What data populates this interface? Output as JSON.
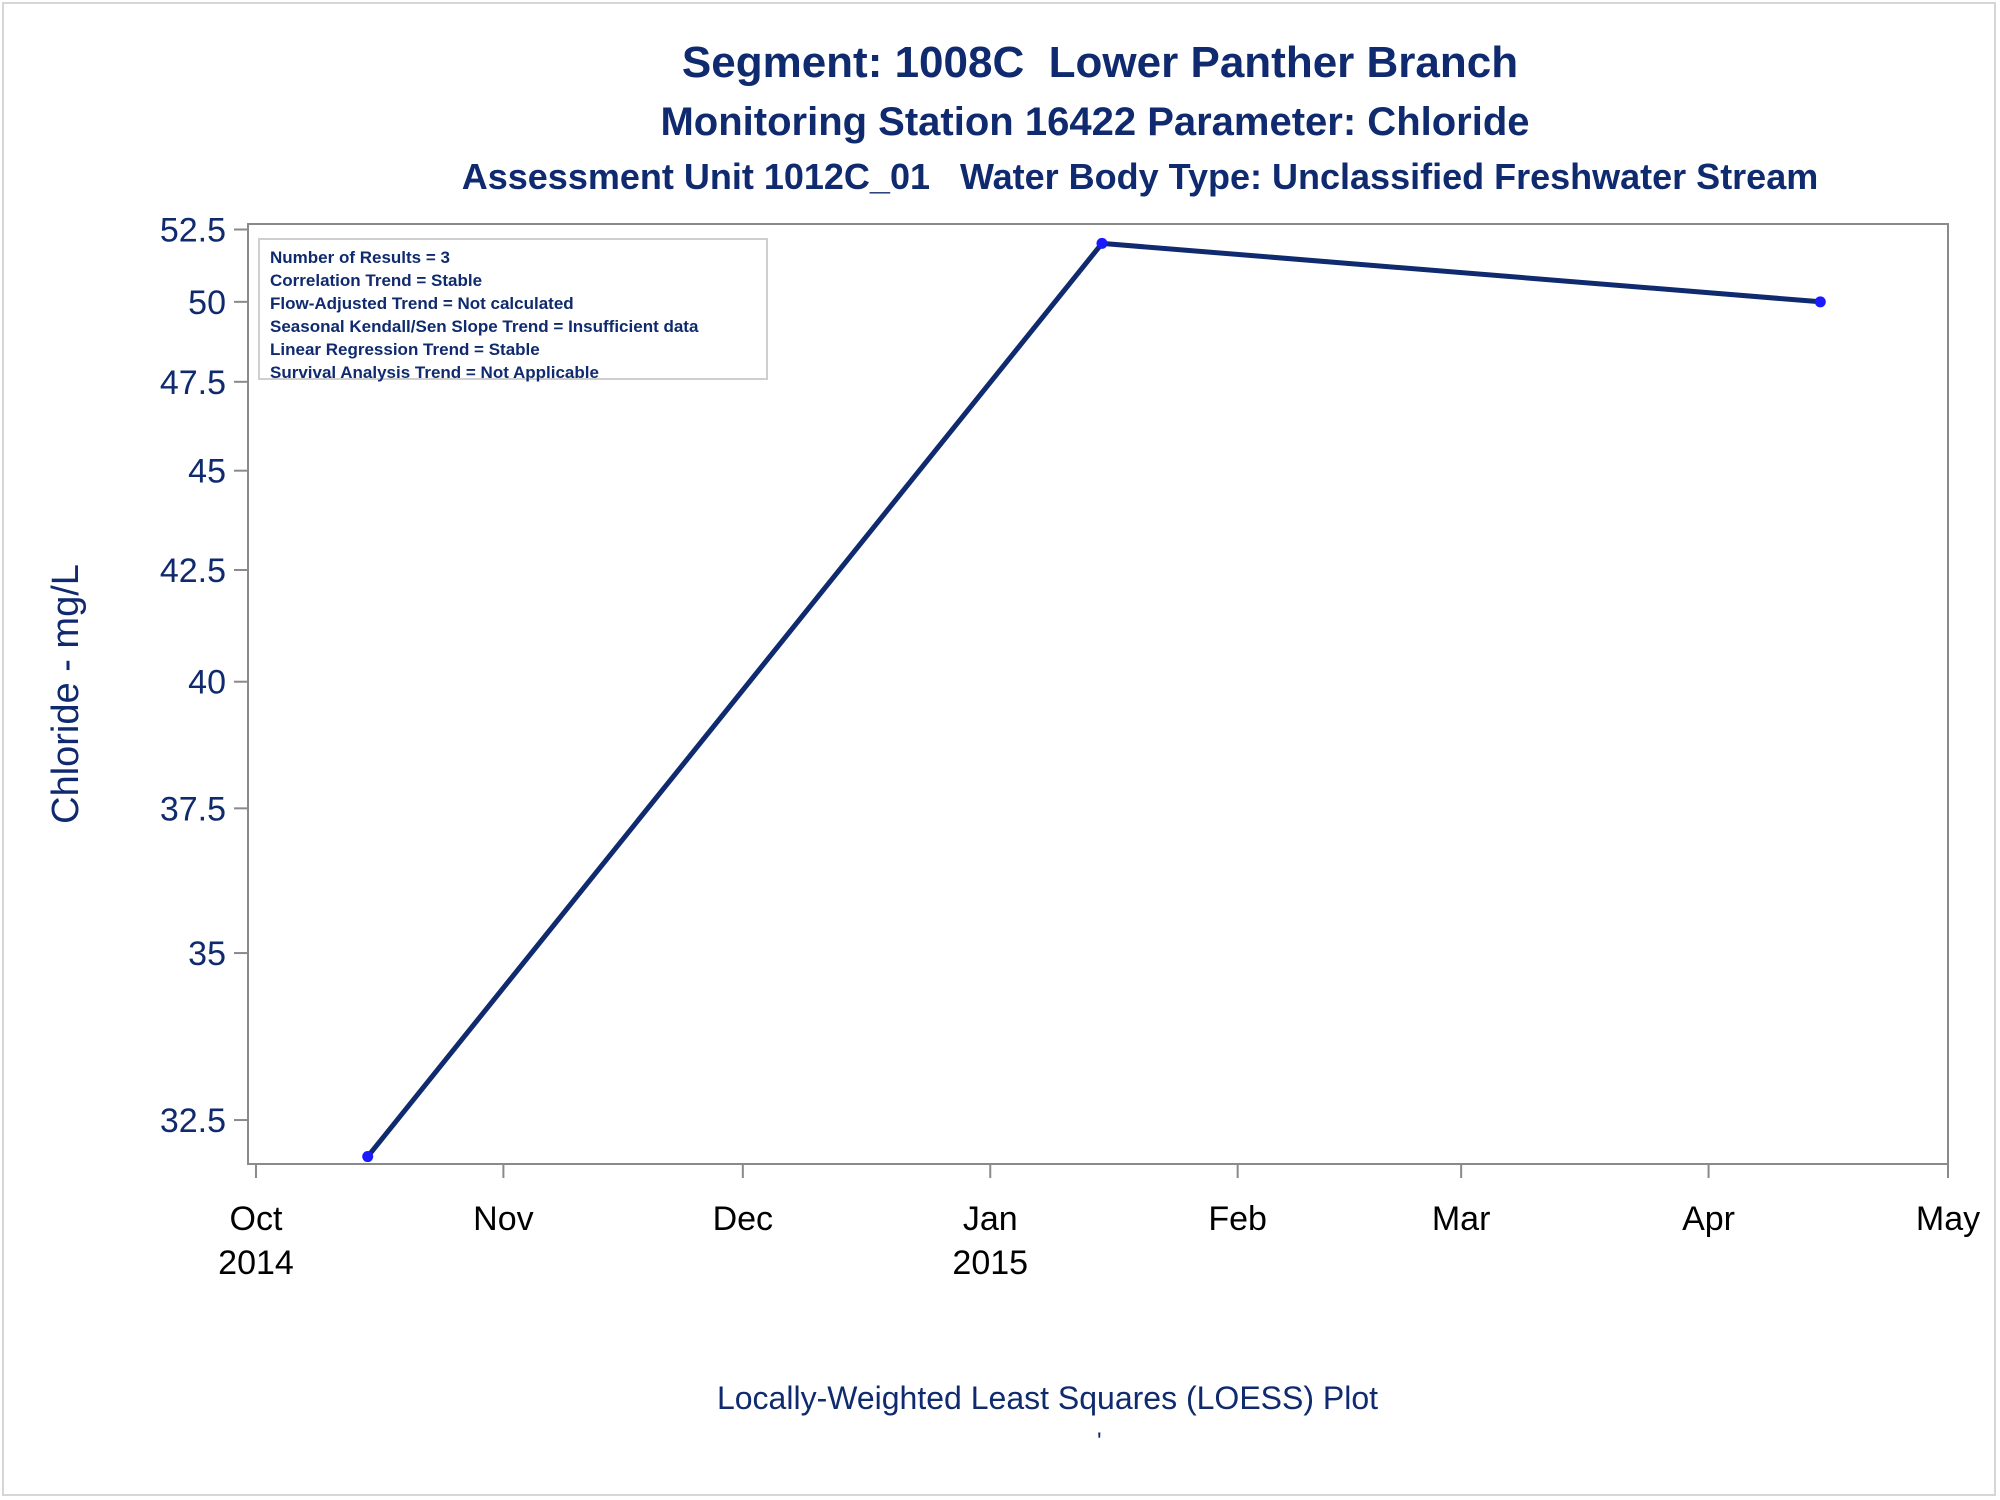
{
  "titles": {
    "line1": "Segment: 1008C  Lower Panther Branch",
    "line2": "Monitoring Station 16422 Parameter: Chloride",
    "line3": "Assessment Unit 1012C_01   Water Body Type: Unclassified Freshwater Stream"
  },
  "stats_box": {
    "line1": "Number of Results = 3",
    "line2": "Correlation Trend = Stable",
    "line3": "Flow-Adjusted Trend = Not calculated",
    "line4": "Seasonal Kendall/Sen Slope Trend = Insufficient data",
    "line5": "Linear Regression Trend = Stable",
    "line6": "Survival Analysis Trend = Not Applicable"
  },
  "footnote": "Locally-Weighted Least Squares (LOESS) Plot",
  "footnote_mark": "'",
  "colors": {
    "text": "#0f2a6e",
    "line": "#0f2a6e",
    "marker": "#1a1aff",
    "axis": "#8a8a8a"
  },
  "chart_data": {
    "type": "line",
    "title": "Segment: 1008C  Lower Panther Branch",
    "xlabel": "",
    "ylabel": "Chloride - mg/L",
    "ylim": [
      31.9,
      52.7
    ],
    "xlim": [
      "2014-09-30",
      "2015-05-01"
    ],
    "y_scale": "reciprocal",
    "grid": false,
    "x_ticks": [
      {
        "date": "2014-10-01",
        "label": "Oct",
        "sublabel": "2014"
      },
      {
        "date": "2014-11-01",
        "label": "Nov",
        "sublabel": ""
      },
      {
        "date": "2014-12-01",
        "label": "Dec",
        "sublabel": ""
      },
      {
        "date": "2015-01-01",
        "label": "Jan",
        "sublabel": "2015"
      },
      {
        "date": "2015-02-01",
        "label": "Feb",
        "sublabel": ""
      },
      {
        "date": "2015-03-01",
        "label": "Mar",
        "sublabel": ""
      },
      {
        "date": "2015-04-01",
        "label": "Apr",
        "sublabel": ""
      },
      {
        "date": "2015-05-01",
        "label": "May",
        "sublabel": ""
      }
    ],
    "y_ticks": [
      {
        "value": 32.5,
        "label": "32.5"
      },
      {
        "value": 35,
        "label": "35"
      },
      {
        "value": 37.5,
        "label": "37.5"
      },
      {
        "value": 40,
        "label": "40"
      },
      {
        "value": 42.5,
        "label": "42.5"
      },
      {
        "value": 45,
        "label": "45"
      },
      {
        "value": 47.5,
        "label": "47.5"
      },
      {
        "value": 50,
        "label": "50"
      },
      {
        "value": 52.5,
        "label": "52.5"
      }
    ],
    "points": [
      {
        "x": "2014-10-15",
        "y": 32
      }
    ],
    "series": [
      {
        "points": [
          {
            "x": "2014-10-15",
            "y": 32
          },
          {
            "x": "2015-01-15",
            "y": 52
          },
          {
            "x": "2015-04-15",
            "y": 50
          }
        ]
      }
    ]
  }
}
